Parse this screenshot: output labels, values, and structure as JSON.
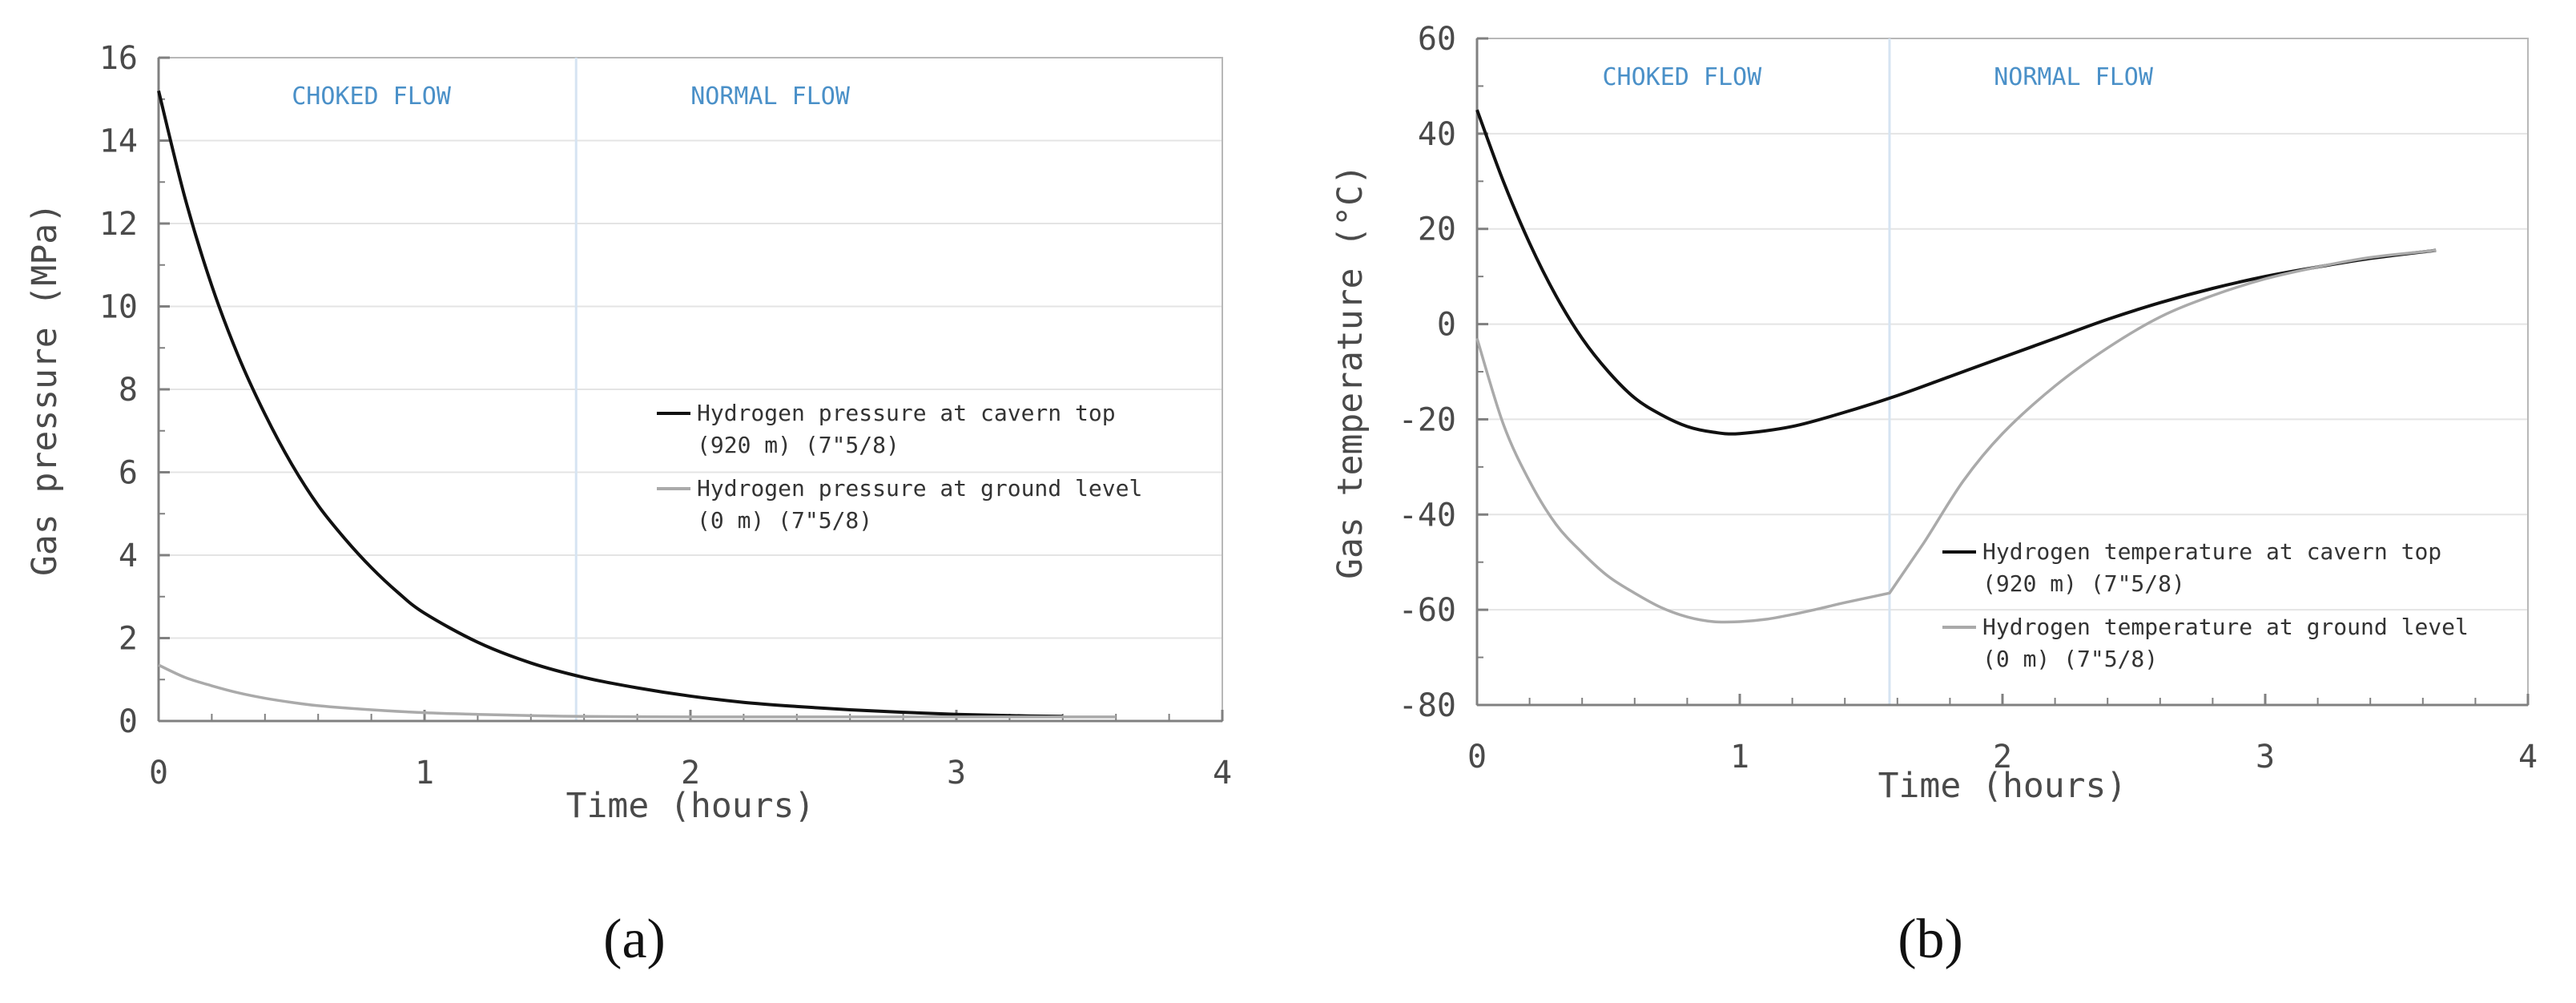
{
  "chart_data": [
    {
      "type": "line",
      "panel_label": "(a)",
      "xlabel": "Time (hours)",
      "ylabel": "Gas pressure (MPa)",
      "xlim": [
        0,
        4
      ],
      "ylim": [
        0,
        16
      ],
      "xticks": [
        0,
        1,
        2,
        3,
        4
      ],
      "yticks": [
        0,
        2,
        4,
        6,
        8,
        10,
        12,
        14,
        16
      ],
      "grid": true,
      "regions": [
        {
          "label": "CHOKED FLOW",
          "x_center": 0.8
        },
        {
          "label": "NORMAL FLOW",
          "x_center": 2.3
        }
      ],
      "region_boundary_x": 1.57,
      "legend": {
        "placement": "center-right"
      },
      "series": [
        {
          "name": "Hydrogen pressure at cavern top",
          "name_line2": "(920 m) (7\"5/8)",
          "color": "#111111",
          "x": [
            0,
            0.1,
            0.2,
            0.3,
            0.4,
            0.5,
            0.6,
            0.7,
            0.8,
            0.9,
            1.0,
            1.2,
            1.4,
            1.6,
            1.8,
            2.0,
            2.2,
            2.4,
            2.6,
            2.8,
            3.0,
            3.2,
            3.4
          ],
          "values": [
            15.2,
            12.6,
            10.5,
            8.8,
            7.4,
            6.2,
            5.2,
            4.4,
            3.7,
            3.1,
            2.6,
            1.9,
            1.4,
            1.05,
            0.8,
            0.6,
            0.45,
            0.35,
            0.27,
            0.21,
            0.16,
            0.13,
            0.11
          ]
        },
        {
          "name": "Hydrogen pressure at ground level",
          "name_line2": "(0 m) (7\"5/8)",
          "color": "#aaaaaa",
          "x": [
            0,
            0.1,
            0.2,
            0.3,
            0.4,
            0.5,
            0.6,
            0.8,
            1.0,
            1.2,
            1.4,
            1.6,
            2.0,
            2.4,
            2.8,
            3.2,
            3.6
          ],
          "values": [
            1.35,
            1.05,
            0.85,
            0.68,
            0.55,
            0.45,
            0.37,
            0.27,
            0.2,
            0.16,
            0.13,
            0.11,
            0.1,
            0.1,
            0.1,
            0.1,
            0.1
          ]
        }
      ]
    },
    {
      "type": "line",
      "panel_label": "(b)",
      "xlabel": "Time (hours)",
      "ylabel": "Gas temperature (°C)",
      "xlim": [
        0,
        4
      ],
      "ylim": [
        -80,
        60
      ],
      "xticks": [
        0,
        1,
        2,
        3,
        4
      ],
      "yticks": [
        -80,
        -60,
        -40,
        -20,
        0,
        20,
        40,
        60
      ],
      "grid": true,
      "regions": [
        {
          "label": "CHOKED FLOW",
          "x_center": 0.78
        },
        {
          "label": "NORMAL FLOW",
          "x_center": 2.27
        }
      ],
      "region_boundary_x": 1.57,
      "legend": {
        "placement": "lower-right"
      },
      "series": [
        {
          "name": "Hydrogen temperature at cavern top",
          "name_line2": "(920 m) (7\"5/8)",
          "color": "#111111",
          "x": [
            0,
            0.1,
            0.2,
            0.3,
            0.4,
            0.5,
            0.6,
            0.7,
            0.8,
            0.9,
            1.0,
            1.2,
            1.4,
            1.6,
            1.8,
            2.0,
            2.2,
            2.4,
            2.6,
            2.8,
            3.0,
            3.2,
            3.4,
            3.65
          ],
          "values": [
            45,
            30,
            17,
            6,
            -3,
            -10,
            -15.5,
            -19,
            -21.5,
            -22.7,
            -23,
            -21.5,
            -18.5,
            -15,
            -11,
            -7,
            -3,
            1,
            4.5,
            7.5,
            10,
            12,
            13.8,
            15.5
          ]
        },
        {
          "name": "Hydrogen temperature at ground level",
          "name_line2": "(0 m) (7\"5/8)",
          "color": "#aaaaaa",
          "x": [
            0,
            0.1,
            0.2,
            0.3,
            0.4,
            0.5,
            0.6,
            0.7,
            0.8,
            0.9,
            1.0,
            1.1,
            1.2,
            1.3,
            1.4,
            1.57,
            1.7,
            1.85,
            2.0,
            2.2,
            2.4,
            2.6,
            2.8,
            3.0,
            3.2,
            3.4,
            3.65
          ],
          "values": [
            -3,
            -21,
            -33,
            -42,
            -48,
            -53,
            -56.5,
            -59.5,
            -61.5,
            -62.5,
            -62.5,
            -62,
            -61,
            -59.8,
            -58.5,
            -56.5,
            -46,
            -33,
            -23,
            -13,
            -5,
            1.5,
            6,
            9.5,
            12,
            14,
            15.5
          ]
        }
      ]
    }
  ]
}
